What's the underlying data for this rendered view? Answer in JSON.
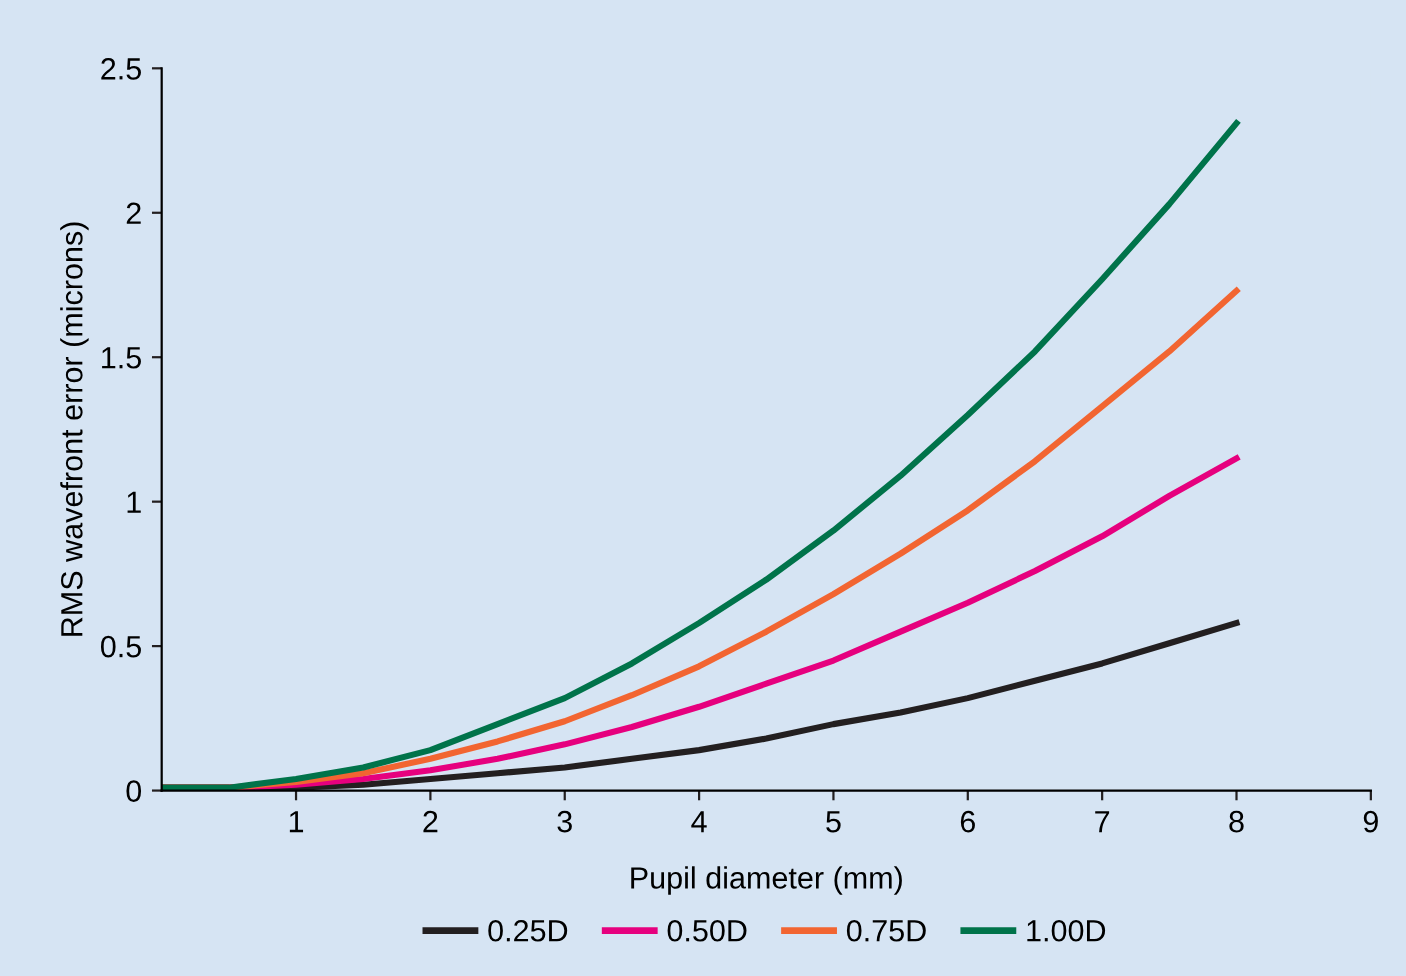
{
  "chart_data": {
    "type": "line",
    "xlabel": "Pupil diameter (mm)",
    "ylabel": "RMS wavefront error (microns)",
    "x": [
      0,
      0.5,
      1,
      1.5,
      2,
      2.5,
      3,
      3.5,
      4,
      4.5,
      5,
      5.5,
      6,
      6.5,
      7,
      7.5,
      8
    ],
    "series": [
      {
        "name": "0.25D",
        "color": "#231f20",
        "values": [
          0.01,
          0.01,
          0.01,
          0.02,
          0.04,
          0.06,
          0.08,
          0.11,
          0.14,
          0.18,
          0.23,
          0.27,
          0.32,
          0.38,
          0.44,
          0.51,
          0.58
        ]
      },
      {
        "name": "0.50D",
        "color": "#e6007e",
        "values": [
          0.01,
          0.01,
          0.02,
          0.04,
          0.07,
          0.11,
          0.16,
          0.22,
          0.29,
          0.37,
          0.45,
          0.55,
          0.65,
          0.76,
          0.88,
          1.02,
          1.15
        ]
      },
      {
        "name": "0.75D",
        "color": "#f26531",
        "values": [
          0.01,
          0.01,
          0.03,
          0.06,
          0.11,
          0.17,
          0.24,
          0.33,
          0.43,
          0.55,
          0.68,
          0.82,
          0.97,
          1.14,
          1.33,
          1.52,
          1.73
        ]
      },
      {
        "name": "1.00D",
        "color": "#00734a",
        "values": [
          0.01,
          0.01,
          0.04,
          0.08,
          0.14,
          0.23,
          0.32,
          0.44,
          0.58,
          0.73,
          0.9,
          1.09,
          1.3,
          1.52,
          1.77,
          2.03,
          2.31
        ]
      }
    ],
    "xlim": [
      0,
      9
    ],
    "xticks": [
      1,
      2,
      3,
      4,
      5,
      6,
      7,
      8,
      9
    ],
    "ylim": [
      0,
      2.5
    ],
    "yticks": [
      0,
      0.5,
      1,
      1.5,
      2,
      2.5
    ],
    "grid": false,
    "legend": "bottom",
    "marker": "none",
    "line_style": "solid"
  }
}
